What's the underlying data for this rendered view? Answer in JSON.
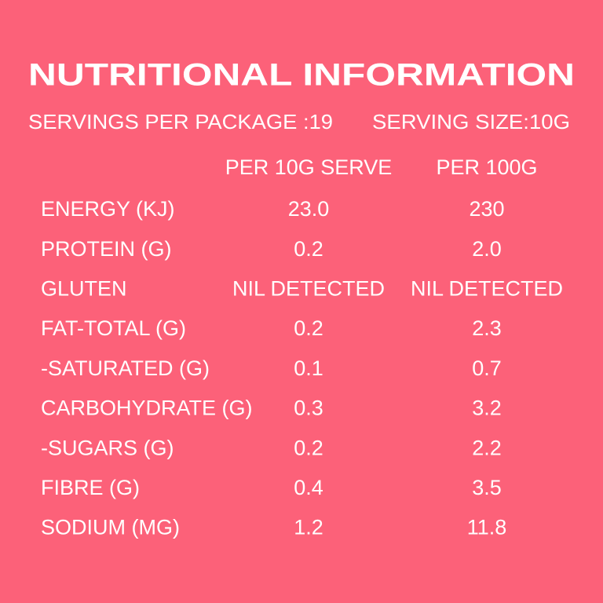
{
  "header": {
    "title": "NUTRITIONAL INFORMATION",
    "servings_per_package": "SERVINGS PER PACKAGE :19",
    "serving_size": "SERVING SIZE:10G"
  },
  "table": {
    "columns": [
      "PER 10G SERVE",
      "PER 100G"
    ],
    "rows": [
      [
        "ENERGY (KJ)",
        "23.0",
        "230"
      ],
      [
        "PROTEIN (G)",
        "0.2",
        "2.0"
      ],
      [
        "GLUTEN",
        "NIL DETECTED",
        "NIL DETECTED"
      ],
      [
        "FAT-TOTAL (G)",
        "0.2",
        "2.3"
      ],
      [
        "-SATURATED (G)",
        "0.1",
        "0.7"
      ],
      [
        "CARBOHYDRATE (G)",
        "0.3",
        "3.2"
      ],
      [
        "-SUGARS (G)",
        "0.2",
        "2.2"
      ],
      [
        "FIBRE (G)",
        "0.4",
        "3.5"
      ],
      [
        "SODIUM (MG)",
        "1.2",
        "11.8"
      ]
    ]
  }
}
